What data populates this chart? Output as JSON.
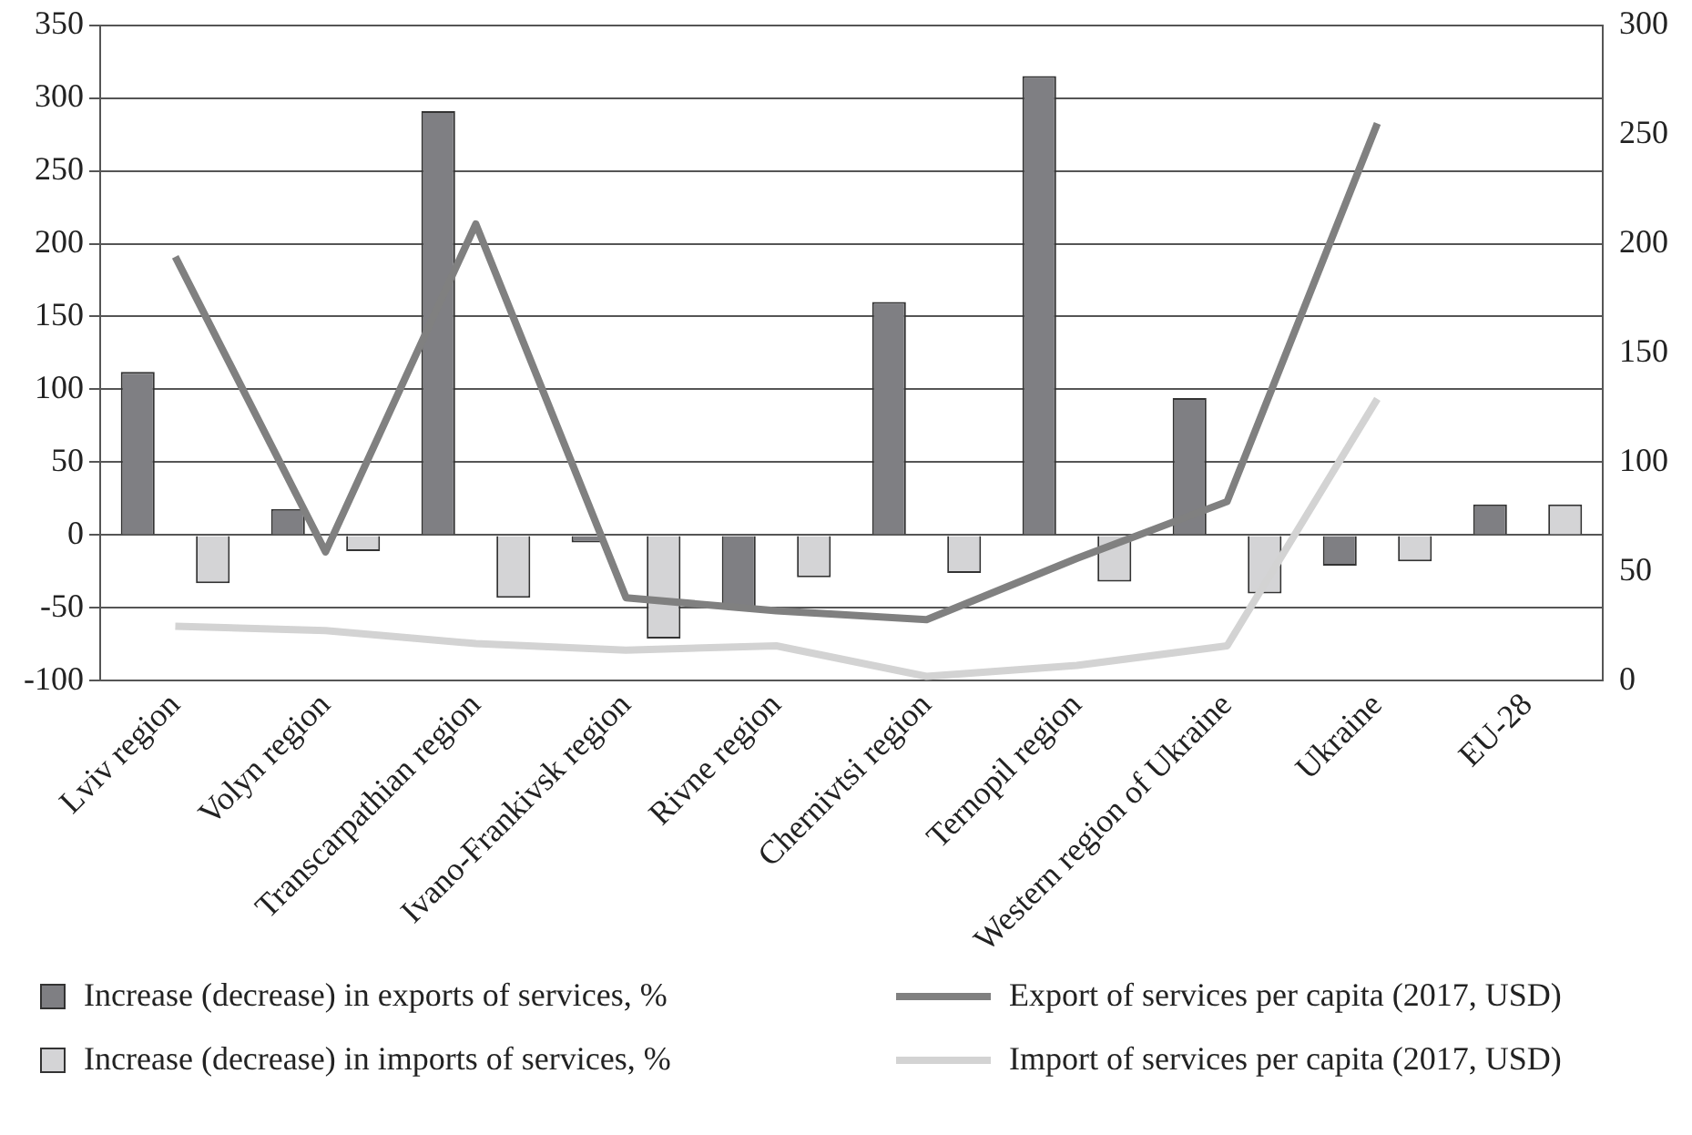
{
  "chart_data": {
    "type": "bar",
    "categories": [
      "Lviv region",
      "Volyn region",
      "Transcarpathian region",
      "Ivano-Frankivsk region",
      "Rivne region",
      "Chernivtsi region",
      "Ternopil region",
      "Western region of Ukraine",
      "Ukraine",
      "EU-28"
    ],
    "series": [
      {
        "name": "Increase (decrease) in exports of services, %",
        "color": "#7f7f83",
        "values": [
          112,
          18,
          291,
          -5,
          -50,
          160,
          315,
          94,
          -21,
          21
        ]
      },
      {
        "name": "Increase (decrease) in imports of services, %",
        "color": "#d4d4d6",
        "values": [
          -33,
          -11,
          -43,
          -71,
          -29,
          -26,
          -32,
          -40,
          -18,
          21
        ]
      },
      {
        "name": "Export of services per capita (2017, USD)",
        "type": "line",
        "axis": "y2",
        "color": "#808080",
        "values": [
          194,
          59,
          209,
          38,
          32,
          28,
          56,
          82,
          255,
          null
        ]
      },
      {
        "name": "Import of services per capita (2017, USD)",
        "type": "line",
        "axis": "y2",
        "color": "#d3d3d3",
        "values": [
          25,
          23,
          17,
          14,
          16,
          2,
          7,
          16,
          129,
          null
        ]
      }
    ],
    "ylim": [
      -100,
      350
    ],
    "yticks": [
      -100,
      -50,
      0,
      50,
      100,
      150,
      200,
      250,
      300,
      350
    ],
    "y2lim": [
      0,
      300
    ],
    "y2ticks": [
      0,
      50,
      100,
      150,
      200,
      250,
      300
    ],
    "grid": "y",
    "legend": "bottom",
    "marker": "none",
    "line_style": "solid"
  }
}
